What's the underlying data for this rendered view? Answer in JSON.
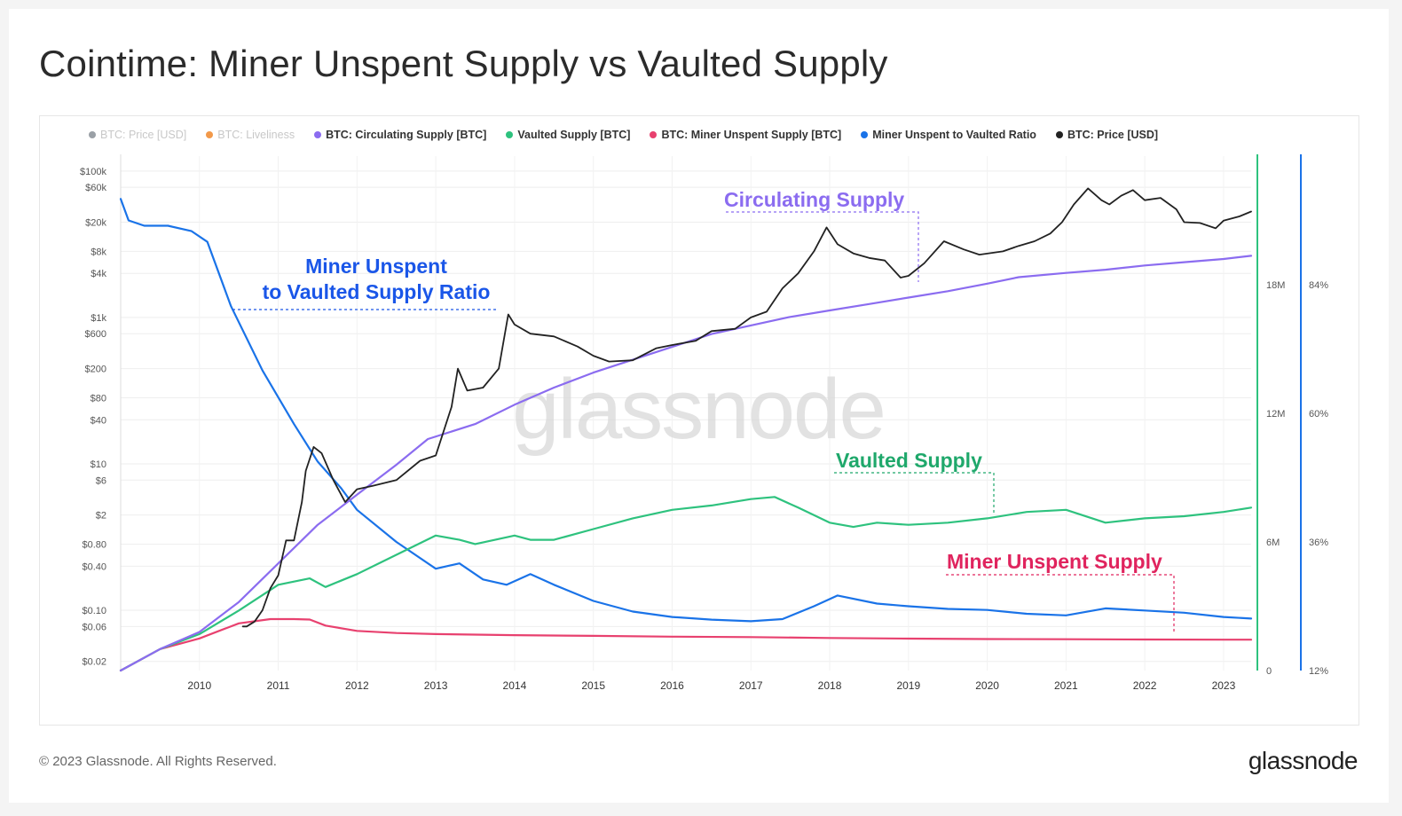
{
  "title": "Cointime: Miner Unspent Supply vs Vaulted Supply",
  "legend": [
    {
      "label": "BTC: Price [USD]",
      "color": "#9aa0a6",
      "disabled": true
    },
    {
      "label": "BTC: Liveliness",
      "color": "#f2994a",
      "disabled": true
    },
    {
      "label": "BTC: Circulating Supply [BTC]",
      "color": "#8b6cf0",
      "disabled": false
    },
    {
      "label": "Vaulted Supply [BTC]",
      "color": "#2ec27e",
      "disabled": false
    },
    {
      "label": "BTC: Miner Unspent Supply [BTC]",
      "color": "#e8416f",
      "disabled": false
    },
    {
      "label": "Miner Unspent to Vaulted Ratio",
      "color": "#1a73e8",
      "disabled": false
    },
    {
      "label": "BTC: Price [USD]",
      "color": "#222222",
      "disabled": false
    }
  ],
  "watermark": "glassnode",
  "footer": {
    "copyright": "© 2023 Glassnode. All Rights Reserved.",
    "logo": "glassnode"
  },
  "chart_data": {
    "type": "line",
    "left_axis_ticks": [
      "$100k",
      "$60k",
      "$20k",
      "$8k",
      "$4k",
      "$1k",
      "$600",
      "$200",
      "$80",
      "$40",
      "$10",
      "$6",
      "$2",
      "$0.80",
      "$0.40",
      "$0.10",
      "$0.06",
      "$0.02"
    ],
    "left_axis_values": [
      100000,
      60000,
      20000,
      8000,
      4000,
      1000,
      600,
      200,
      80,
      40,
      10,
      6,
      2,
      0.8,
      0.4,
      0.1,
      0.06,
      0.02
    ],
    "left_axis_scale": "log",
    "right_axis_1_ticks": [
      "18M",
      "12M",
      "6M",
      "0"
    ],
    "right_axis_1_values": [
      18000000,
      12000000,
      6000000,
      0
    ],
    "right_axis_2_ticks": [
      "84%",
      "60%",
      "36%",
      "12%"
    ],
    "right_axis_2_values": [
      84,
      60,
      36,
      12
    ],
    "x_ticks": [
      "2010",
      "2011",
      "2012",
      "2013",
      "2014",
      "2015",
      "2016",
      "2017",
      "2018",
      "2019",
      "2020",
      "2021",
      "2022",
      "2023"
    ],
    "x_range": [
      2009.0,
      2023.35
    ],
    "supply_range": [
      0,
      24000000
    ],
    "ratio_range": [
      12,
      108
    ],
    "annotations": [
      {
        "text": "Circulating Supply",
        "color": "#8b6cf0"
      },
      {
        "text": "Miner Unspent",
        "text2": "to Vaulted Supply Ratio",
        "color": "#1a56e8"
      },
      {
        "text": "Vaulted Supply",
        "color": "#1fa86b"
      },
      {
        "text": "Miner Unspent Supply",
        "color": "#e0245e"
      }
    ],
    "series": [
      {
        "name": "BTC: Circulating Supply [BTC]",
        "axis": "supply",
        "color": "#8b6cf0",
        "x": [
          2009.0,
          2009.5,
          2010.0,
          2010.5,
          2011.0,
          2011.5,
          2012.0,
          2012.5,
          2012.9,
          2013.5,
          2014.0,
          2014.5,
          2015.0,
          2015.5,
          2016.0,
          2016.5,
          2017.0,
          2017.5,
          2018.0,
          2018.5,
          2019.0,
          2019.5,
          2020.0,
          2020.4,
          2021.0,
          2021.5,
          2022.0,
          2022.5,
          2023.0,
          2023.35
        ],
        "values": [
          0,
          1000000,
          1800000,
          3200000,
          5000000,
          6800000,
          8200000,
          9600000,
          10800000,
          11500000,
          12400000,
          13200000,
          13900000,
          14500000,
          15100000,
          15700000,
          16100000,
          16500000,
          16800000,
          17100000,
          17400000,
          17700000,
          18050000,
          18350000,
          18550000,
          18700000,
          18900000,
          19050000,
          19200000,
          19350000
        ]
      },
      {
        "name": "Vaulted Supply [BTC]",
        "axis": "supply",
        "color": "#2ec27e",
        "x": [
          2009.0,
          2009.5,
          2010.0,
          2010.5,
          2011.0,
          2011.4,
          2011.6,
          2012.0,
          2012.5,
          2013.0,
          2013.3,
          2013.5,
          2014.0,
          2014.2,
          2014.5,
          2015.0,
          2015.5,
          2016.0,
          2016.5,
          2017.0,
          2017.3,
          2017.6,
          2018.0,
          2018.3,
          2018.6,
          2019.0,
          2019.5,
          2020.0,
          2020.5,
          2021.0,
          2021.5,
          2022.0,
          2022.5,
          2023.0,
          2023.35
        ],
        "values": [
          0,
          1000000,
          1700000,
          2800000,
          4000000,
          4300000,
          3900000,
          4500000,
          5400000,
          6300000,
          6100000,
          5900000,
          6300000,
          6100000,
          6100000,
          6600000,
          7100000,
          7500000,
          7700000,
          8000000,
          8100000,
          7600000,
          6900000,
          6700000,
          6900000,
          6800000,
          6900000,
          7100000,
          7400000,
          7500000,
          6900000,
          7100000,
          7200000,
          7400000,
          7600000
        ]
      },
      {
        "name": "BTC: Miner Unspent Supply [BTC]",
        "axis": "supply",
        "color": "#e8416f",
        "x": [
          2009.0,
          2009.5,
          2010.0,
          2010.5,
          2010.9,
          2011.2,
          2011.4,
          2011.6,
          2012.0,
          2012.5,
          2013.0,
          2014.0,
          2015.0,
          2016.0,
          2017.0,
          2018.0,
          2019.0,
          2020.0,
          2021.0,
          2022.0,
          2023.0,
          2023.35
        ],
        "values": [
          0,
          1000000,
          1500000,
          2200000,
          2400000,
          2400000,
          2380000,
          2100000,
          1850000,
          1750000,
          1700000,
          1650000,
          1620000,
          1580000,
          1560000,
          1520000,
          1490000,
          1470000,
          1460000,
          1450000,
          1440000,
          1440000
        ]
      },
      {
        "name": "Miner Unspent to Vaulted Ratio",
        "axis": "ratio",
        "color": "#1a73e8",
        "x": [
          2009.0,
          2009.1,
          2009.3,
          2009.6,
          2009.9,
          2010.1,
          2010.4,
          2010.8,
          2011.2,
          2011.5,
          2011.8,
          2012.0,
          2012.5,
          2013.0,
          2013.3,
          2013.6,
          2013.9,
          2014.2,
          2014.5,
          2015.0,
          2015.5,
          2016.0,
          2016.5,
          2017.0,
          2017.4,
          2017.8,
          2018.1,
          2018.6,
          2019.0,
          2019.5,
          2020.0,
          2020.5,
          2021.0,
          2021.5,
          2022.0,
          2022.5,
          2023.0,
          2023.35
        ],
        "values": [
          100,
          96,
          95,
          95,
          94,
          92,
          80,
          68,
          58,
          51,
          46,
          42,
          36,
          31,
          32,
          29,
          28,
          30,
          28,
          25,
          23,
          22,
          21.5,
          21.2,
          21.6,
          24,
          26,
          24.5,
          24,
          23.5,
          23.3,
          22.6,
          22.3,
          23.6,
          23.2,
          22.8,
          22.0,
          21.7
        ]
      },
      {
        "name": "BTC: Price [USD]",
        "axis": "price",
        "color": "#222222",
        "x": [
          2010.55,
          2010.6,
          2010.7,
          2010.8,
          2010.9,
          2011.0,
          2011.1,
          2011.2,
          2011.3,
          2011.35,
          2011.45,
          2011.55,
          2011.7,
          2011.85,
          2012.0,
          2012.2,
          2012.5,
          2012.8,
          2013.0,
          2013.2,
          2013.28,
          2013.4,
          2013.6,
          2013.8,
          2013.92,
          2014.0,
          2014.2,
          2014.5,
          2014.8,
          2015.0,
          2015.2,
          2015.5,
          2015.8,
          2016.0,
          2016.3,
          2016.5,
          2016.8,
          2017.0,
          2017.2,
          2017.4,
          2017.6,
          2017.8,
          2017.96,
          2018.1,
          2018.3,
          2018.5,
          2018.7,
          2018.9,
          2019.0,
          2019.2,
          2019.45,
          2019.7,
          2019.9,
          2020.2,
          2020.4,
          2020.6,
          2020.8,
          2020.95,
          2021.1,
          2021.28,
          2021.45,
          2021.55,
          2021.7,
          2021.85,
          2022.0,
          2022.2,
          2022.4,
          2022.5,
          2022.7,
          2022.9,
          2023.0,
          2023.2,
          2023.35
        ],
        "values": [
          0.06,
          0.06,
          0.07,
          0.1,
          0.2,
          0.3,
          0.9,
          0.9,
          3,
          8,
          17,
          14,
          6,
          3,
          4.5,
          5,
          6,
          11,
          13,
          60,
          200,
          100,
          110,
          200,
          1100,
          800,
          600,
          550,
          400,
          300,
          250,
          260,
          380,
          420,
          480,
          650,
          700,
          1000,
          1200,
          2500,
          4000,
          8000,
          17000,
          10000,
          7500,
          6500,
          6000,
          3500,
          3700,
          5500,
          11000,
          8500,
          7200,
          8000,
          9500,
          11000,
          14000,
          20000,
          35000,
          58000,
          40000,
          35000,
          46000,
          55000,
          40000,
          43000,
          30000,
          20000,
          19500,
          16500,
          21000,
          24000,
          28000
        ]
      }
    ]
  }
}
